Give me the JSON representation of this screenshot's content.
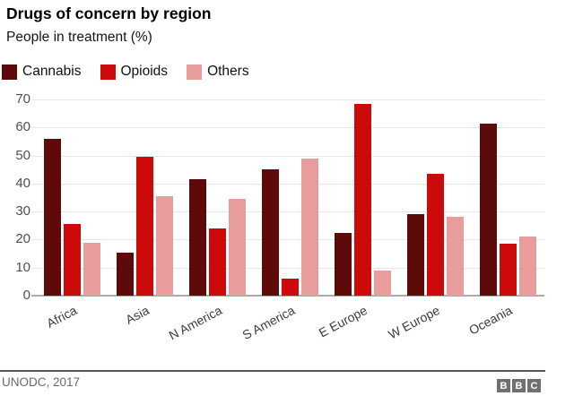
{
  "header": {
    "title": "Drugs of concern by region",
    "subtitle": "People in treatment (%)"
  },
  "chart_data": {
    "type": "bar",
    "title": "Drugs of concern by region",
    "subtitle": "People in treatment (%)",
    "categories": [
      "Africa",
      "Asia",
      "N America",
      "S America",
      "E Europe",
      "W Europe",
      "Oceania"
    ],
    "series": [
      {
        "name": "Cannabis",
        "color": "#5f0a0a",
        "values": [
          56,
          15.5,
          41.5,
          45,
          22.5,
          29,
          61.5
        ]
      },
      {
        "name": "Opioids",
        "color": "#cc0a0a",
        "values": [
          25.5,
          49.5,
          24,
          6,
          68.5,
          43.5,
          18.5
        ]
      },
      {
        "name": "Others",
        "color": "#e89c9c",
        "values": [
          19,
          35.5,
          34.5,
          49,
          9,
          28,
          21
        ]
      }
    ],
    "xlabel": "",
    "ylabel": "People in treatment (%)",
    "ylim": [
      0,
      70
    ],
    "ytick_step": 10,
    "grid": true,
    "legend_position": "top-left"
  },
  "colors": {
    "gridline": "#e7e7e7",
    "axis_line": "#ababab",
    "footer_line": "#565656",
    "logo_gray": "#707070"
  },
  "footer": {
    "source": "UNODC, 2017",
    "logo_letters": [
      "B",
      "B",
      "C"
    ]
  }
}
